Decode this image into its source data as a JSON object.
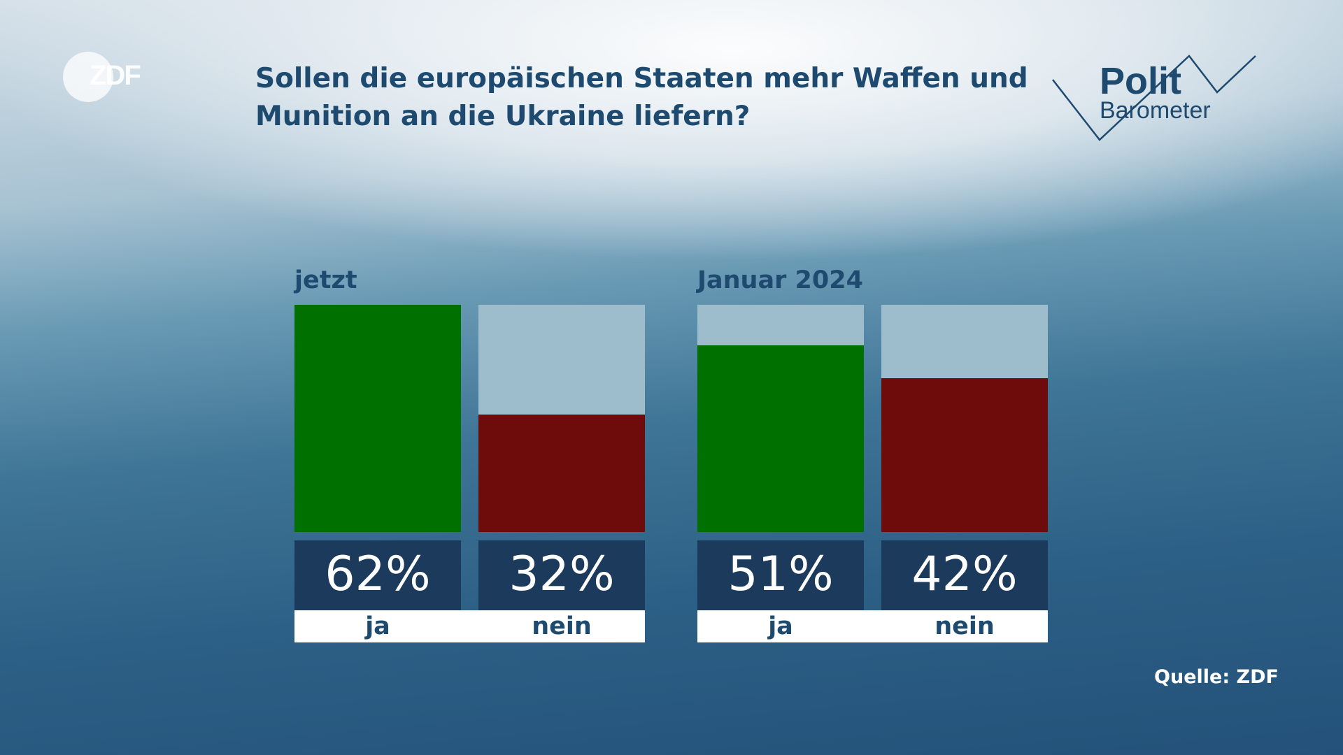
{
  "logo": {
    "text": "ZDF"
  },
  "header": {
    "title_line1": "Sollen die europäischen Staaten mehr Waffen und",
    "title_line2": "Munition an die Ukraine liefern?"
  },
  "brand": {
    "polit": "Polit",
    "barometer": "Barometer"
  },
  "colors": {
    "ja": "#007000",
    "nein": "#6e0c0c",
    "bar_background": "#9dbccc",
    "value_box": "#1b3a5c",
    "text": "#1d4a6e"
  },
  "chart_data": {
    "type": "bar",
    "title": "Sollen die europäischen Staaten mehr Waffen und Munition an die Ukraine liefern?",
    "groups": [
      {
        "label": "jetzt",
        "bars": [
          {
            "category": "ja",
            "value": 62,
            "label": "62%",
            "color": "#007000"
          },
          {
            "category": "nein",
            "value": 32,
            "label": "32%",
            "color": "#6e0c0c"
          }
        ]
      },
      {
        "label": "Januar 2024",
        "bars": [
          {
            "category": "ja",
            "value": 51,
            "label": "51%",
            "color": "#007000"
          },
          {
            "category": "nein",
            "value": 42,
            "label": "42%",
            "color": "#6e0c0c"
          }
        ]
      }
    ],
    "ylim": [
      0,
      62
    ],
    "unit": "%",
    "source": "Quelle: ZDF"
  }
}
